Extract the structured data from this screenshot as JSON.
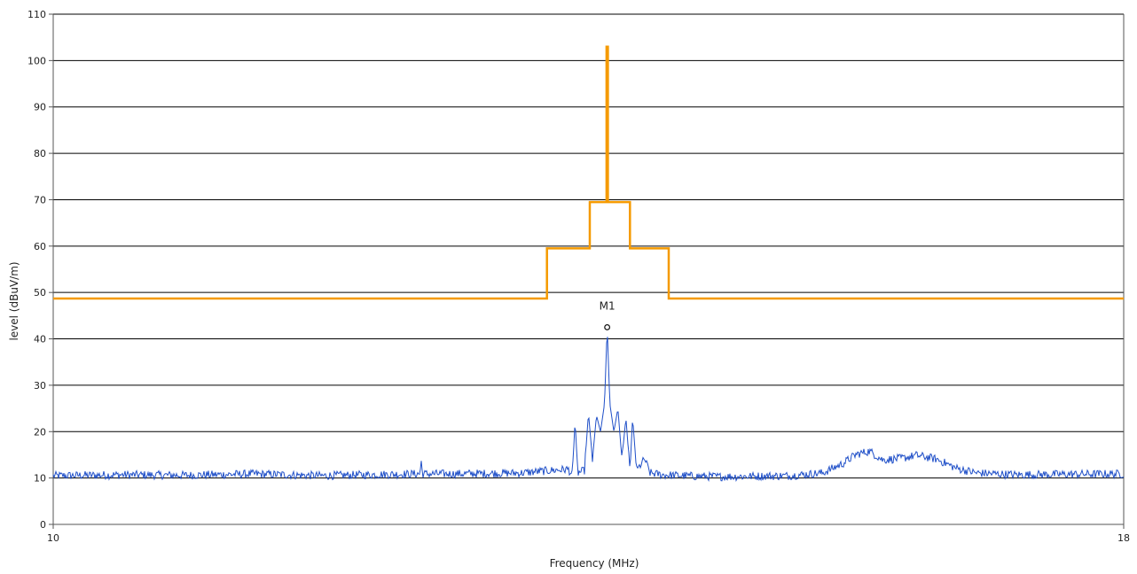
{
  "chart_data": {
    "type": "line",
    "xlabel": "Frequency (MHz)",
    "ylabel": "level (dBuV/m)",
    "xlim": [
      10,
      18
    ],
    "ylim": [
      0,
      110
    ],
    "x_ticks": [
      10,
      18
    ],
    "y_ticks": [
      0,
      10,
      20,
      30,
      40,
      50,
      60,
      70,
      80,
      90,
      100,
      110
    ],
    "grid": "horizontal",
    "colors": {
      "limit": "#f59a00",
      "measurement": "#1f4fc8",
      "grid": "#000000",
      "axis": "#555555"
    },
    "series": [
      {
        "key": "limit",
        "points": [
          [
            10,
            48.7
          ],
          [
            13.69,
            48.7
          ],
          [
            13.69,
            59.5
          ],
          [
            14.01,
            59.5
          ],
          [
            14.01,
            69.5
          ],
          [
            14.135,
            69.5
          ],
          [
            14.135,
            103
          ],
          [
            14.145,
            103
          ],
          [
            14.145,
            69.5
          ],
          [
            14.31,
            69.5
          ],
          [
            14.31,
            59.5
          ],
          [
            14.6,
            59.5
          ],
          [
            14.6,
            48.7
          ],
          [
            18,
            48.7
          ]
        ]
      },
      {
        "key": "measurement",
        "noise_floor": 10.5,
        "points": [
          [
            10,
            10.4
          ],
          [
            10.5,
            10.6
          ],
          [
            11,
            10.5
          ],
          [
            11.5,
            10.8
          ],
          [
            12,
            10.4
          ],
          [
            12.5,
            10.7
          ],
          [
            12.74,
            10.8
          ],
          [
            12.75,
            13.5
          ],
          [
            12.76,
            10.8
          ],
          [
            13.0,
            10.8
          ],
          [
            13.5,
            11.0
          ],
          [
            13.7,
            11.5
          ],
          [
            13.85,
            11.8
          ],
          [
            13.88,
            10.5
          ],
          [
            13.9,
            22.5
          ],
          [
            13.92,
            11.0
          ],
          [
            13.97,
            11.5
          ],
          [
            14.0,
            24.0
          ],
          [
            14.03,
            14.0
          ],
          [
            14.06,
            23.5
          ],
          [
            14.09,
            20.0
          ],
          [
            14.12,
            26.0
          ],
          [
            14.14,
            42.5
          ],
          [
            14.16,
            26.0
          ],
          [
            14.19,
            20.0
          ],
          [
            14.22,
            25.0
          ],
          [
            14.25,
            14.0
          ],
          [
            14.28,
            23.0
          ],
          [
            14.31,
            11.5
          ],
          [
            14.33,
            23.0
          ],
          [
            14.36,
            11.5
          ],
          [
            14.42,
            14.0
          ],
          [
            14.46,
            11.0
          ],
          [
            14.55,
            10.6
          ],
          [
            14.8,
            10.3
          ],
          [
            15.0,
            10.2
          ],
          [
            15.5,
            10.4
          ],
          [
            15.75,
            11.0
          ],
          [
            15.9,
            13.0
          ],
          [
            16.0,
            15.0
          ],
          [
            16.1,
            15.7
          ],
          [
            16.2,
            13.8
          ],
          [
            16.35,
            14.2
          ],
          [
            16.45,
            14.8
          ],
          [
            16.6,
            14.0
          ],
          [
            16.75,
            12.0
          ],
          [
            16.9,
            11.0
          ],
          [
            17.2,
            10.6
          ],
          [
            17.5,
            10.7
          ],
          [
            18,
            10.8
          ]
        ]
      }
    ],
    "annotations": [
      {
        "label": "M1",
        "x": 14.14,
        "y": 42.5
      }
    ]
  }
}
